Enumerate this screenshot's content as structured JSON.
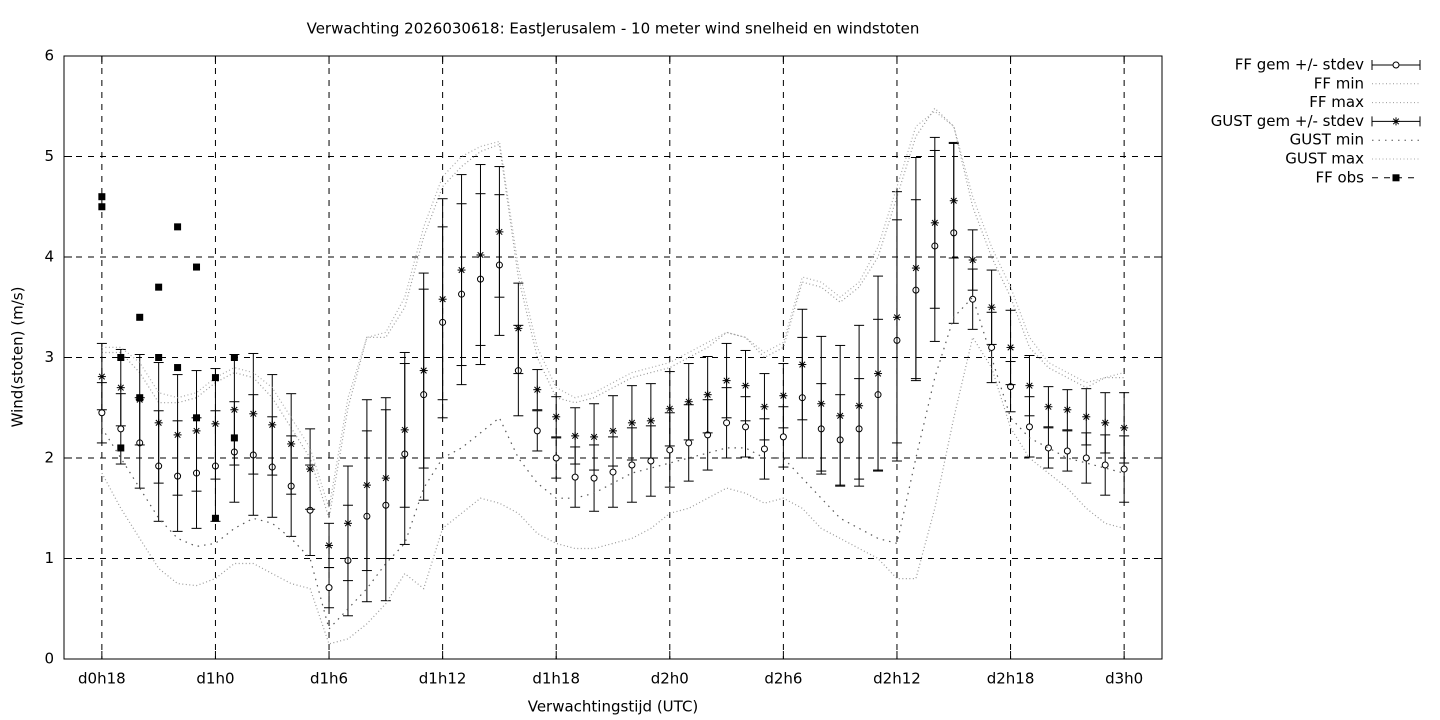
{
  "chart_data": {
    "type": "errorbar",
    "title": "Verwachting 2026030618: EastJerusalem - 10 meter wind snelheid en windstoten",
    "xlabel": "Verwachtingstijd (UTC)",
    "ylabel": "Wind(stoten) (m/s)",
    "x": [
      18,
      19,
      20,
      21,
      22,
      23,
      24,
      25,
      26,
      27,
      28,
      29,
      30,
      31,
      32,
      33,
      34,
      35,
      36,
      37,
      38,
      39,
      40,
      41,
      42,
      43,
      44,
      45,
      46,
      47,
      48,
      49,
      50,
      51,
      52,
      53,
      54,
      55,
      56,
      57,
      58,
      59,
      60,
      61,
      62,
      63,
      64,
      65,
      66,
      67,
      68,
      69,
      70,
      71,
      72
    ],
    "xlim": [
      16,
      74
    ],
    "xticks": [
      {
        "value": 18,
        "label": "d0h18"
      },
      {
        "value": 24,
        "label": "d1h0"
      },
      {
        "value": 30,
        "label": "d1h6"
      },
      {
        "value": 36,
        "label": "d1h12"
      },
      {
        "value": 42,
        "label": "d1h18"
      },
      {
        "value": 48,
        "label": "d2h0"
      },
      {
        "value": 54,
        "label": "d2h6"
      },
      {
        "value": 60,
        "label": "d2h12"
      },
      {
        "value": 66,
        "label": "d2h18"
      },
      {
        "value": 72,
        "label": "d3h0"
      }
    ],
    "ylim": [
      0,
      6
    ],
    "yticks": [
      0,
      1,
      2,
      3,
      4,
      5,
      6
    ],
    "grid": true,
    "legend": "outside-right",
    "series": [
      {
        "name": "FF gem +/- stdev",
        "color": "#000000",
        "style": "errorbar-circle",
        "values": [
          2.45,
          2.29,
          2.15,
          1.92,
          1.82,
          1.85,
          1.92,
          2.06,
          2.03,
          1.91,
          1.72,
          1.48,
          0.71,
          0.98,
          1.42,
          1.53,
          2.04,
          2.63,
          3.35,
          3.63,
          3.78,
          3.92,
          2.87,
          2.27,
          2.0,
          1.81,
          1.8,
          1.86,
          1.93,
          1.97,
          2.08,
          2.15,
          2.23,
          2.35,
          2.31,
          2.09,
          2.21,
          2.6,
          2.29,
          2.18,
          2.29,
          2.63,
          3.17,
          3.67,
          4.11,
          4.24,
          3.58,
          3.1,
          2.71,
          2.31,
          2.1,
          2.07,
          2.0,
          1.93,
          1.89
        ],
        "errors": [
          0.3,
          0.35,
          0.45,
          0.55,
          0.55,
          0.55,
          0.55,
          0.5,
          0.6,
          0.5,
          0.5,
          0.45,
          0.2,
          0.55,
          0.85,
          0.95,
          0.9,
          1.05,
          0.95,
          0.9,
          0.85,
          0.7,
          0.45,
          0.2,
          0.2,
          0.3,
          0.33,
          0.35,
          0.37,
          0.35,
          0.37,
          0.38,
          0.35,
          0.35,
          0.3,
          0.3,
          0.3,
          0.6,
          0.45,
          0.45,
          0.5,
          0.75,
          1.2,
          0.9,
          0.95,
          0.9,
          0.3,
          0.35,
          0.25,
          0.3,
          0.2,
          0.2,
          0.25,
          0.3,
          0.33
        ]
      },
      {
        "name": "FF min",
        "color": "#999999",
        "style": "dotted",
        "values": [
          1.85,
          1.5,
          1.2,
          0.9,
          0.75,
          0.73,
          0.8,
          0.95,
          0.95,
          0.85,
          0.75,
          0.7,
          0.15,
          0.2,
          0.35,
          0.55,
          0.85,
          0.7,
          1.3,
          1.45,
          1.6,
          1.55,
          1.45,
          1.25,
          1.15,
          1.1,
          1.1,
          1.15,
          1.2,
          1.3,
          1.45,
          1.5,
          1.6,
          1.7,
          1.65,
          1.55,
          1.6,
          1.5,
          1.3,
          1.2,
          1.1,
          1.0,
          0.8,
          0.8,
          1.5,
          2.4,
          3.2,
          2.9,
          2.3,
          2.0,
          1.85,
          1.7,
          1.5,
          1.35,
          1.3
        ]
      },
      {
        "name": "FF max",
        "color": "#999999",
        "style": "dotted",
        "values": [
          3.05,
          3.05,
          2.85,
          2.55,
          2.55,
          2.6,
          2.75,
          2.85,
          2.8,
          2.6,
          2.3,
          2.0,
          1.4,
          2.5,
          3.2,
          3.2,
          3.5,
          4.2,
          4.7,
          4.9,
          5.05,
          5.12,
          3.8,
          3.0,
          2.6,
          2.55,
          2.6,
          2.7,
          2.8,
          2.85,
          2.9,
          3.0,
          3.1,
          3.25,
          3.2,
          3.0,
          3.1,
          3.75,
          3.7,
          3.55,
          3.7,
          4.0,
          4.6,
          5.2,
          5.48,
          5.3,
          4.5,
          4.0,
          3.6,
          3.1,
          2.9,
          2.8,
          2.7,
          2.8,
          2.8
        ]
      },
      {
        "name": "GUST gem +/- stdev",
        "color": "#000000",
        "style": "errorbar-star",
        "values": [
          2.81,
          2.7,
          2.58,
          2.35,
          2.23,
          2.27,
          2.34,
          2.48,
          2.44,
          2.33,
          2.14,
          1.89,
          1.13,
          1.35,
          1.73,
          1.8,
          2.28,
          2.87,
          3.58,
          3.87,
          4.02,
          4.25,
          3.29,
          2.68,
          2.41,
          2.22,
          2.21,
          2.27,
          2.35,
          2.37,
          2.49,
          2.56,
          2.63,
          2.77,
          2.72,
          2.51,
          2.62,
          2.93,
          2.54,
          2.42,
          2.52,
          2.84,
          3.4,
          3.89,
          4.34,
          4.56,
          3.97,
          3.5,
          3.1,
          2.72,
          2.51,
          2.48,
          2.41,
          2.35,
          2.3
        ],
        "errors": [
          0.33,
          0.38,
          0.45,
          0.6,
          0.6,
          0.6,
          0.55,
          0.55,
          0.6,
          0.5,
          0.5,
          0.4,
          0.22,
          0.57,
          0.85,
          0.8,
          0.77,
          0.97,
          1.0,
          0.95,
          0.9,
          0.65,
          0.45,
          0.2,
          0.2,
          0.28,
          0.33,
          0.35,
          0.37,
          0.37,
          0.37,
          0.38,
          0.38,
          0.37,
          0.35,
          0.33,
          0.32,
          0.55,
          0.67,
          0.7,
          0.8,
          0.97,
          1.25,
          1.1,
          0.85,
          0.57,
          0.3,
          0.37,
          0.37,
          0.3,
          0.2,
          0.2,
          0.28,
          0.3,
          0.35
        ]
      },
      {
        "name": "GUST min",
        "color": "#555555",
        "style": "sparse-dotted",
        "values": [
          2.3,
          2.0,
          1.7,
          1.4,
          1.2,
          1.12,
          1.15,
          1.3,
          1.4,
          1.35,
          1.2,
          1.0,
          0.3,
          0.5,
          0.7,
          0.95,
          1.15,
          1.7,
          2.0,
          2.1,
          2.25,
          2.4,
          2.0,
          1.75,
          1.6,
          1.6,
          1.65,
          1.75,
          1.85,
          1.9,
          1.95,
          2.0,
          2.05,
          2.1,
          2.1,
          2.0,
          2.0,
          1.8,
          1.6,
          1.4,
          1.3,
          1.2,
          1.15,
          2.0,
          2.8,
          3.4,
          3.6,
          3.0,
          2.4,
          2.2,
          2.1,
          2.0,
          1.95,
          1.9,
          1.85
        ]
      },
      {
        "name": "GUST max",
        "color": "#aaaaaa",
        "style": "dotted",
        "values": [
          3.1,
          3.1,
          2.95,
          2.65,
          2.6,
          2.65,
          2.8,
          2.9,
          2.85,
          2.7,
          2.4,
          2.1,
          1.5,
          2.6,
          3.2,
          3.25,
          3.6,
          4.3,
          4.8,
          5.0,
          5.1,
          5.15,
          3.9,
          3.1,
          2.7,
          2.6,
          2.65,
          2.75,
          2.85,
          2.9,
          2.95,
          3.05,
          3.15,
          3.25,
          3.2,
          3.05,
          3.15,
          3.8,
          3.75,
          3.6,
          3.75,
          4.1,
          4.7,
          5.3,
          5.45,
          5.3,
          4.6,
          4.1,
          3.7,
          3.2,
          2.95,
          2.85,
          2.75,
          2.8,
          2.85
        ]
      },
      {
        "name": "FF obs",
        "color": "#000000",
        "style": "squares",
        "x": [
          18,
          18,
          19,
          19,
          20,
          20,
          21,
          21,
          22,
          22,
          23,
          23,
          24,
          24,
          25,
          25
        ],
        "values": [
          4.6,
          4.5,
          3.0,
          2.1,
          3.4,
          2.6,
          3.7,
          3.0,
          4.3,
          2.9,
          3.9,
          2.4,
          2.8,
          1.4,
          3.0,
          2.2
        ]
      }
    ]
  }
}
